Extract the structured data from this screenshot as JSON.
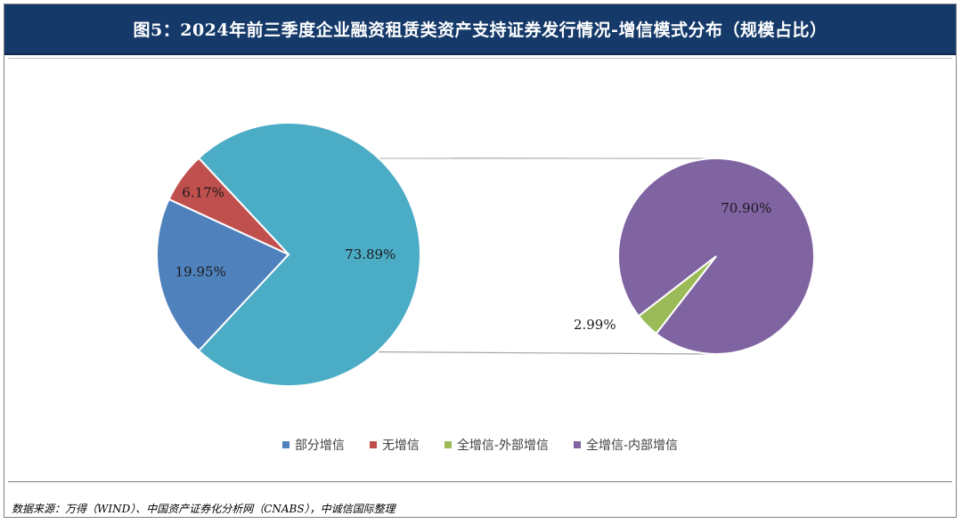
{
  "header": {
    "title": "图5：2024年前三季度企业融资租赁类资产支持证券发行情况-增信模式分布（规模占比）"
  },
  "chart_data": {
    "type": "pie",
    "subtype": "pie-of-pie",
    "main_pie": {
      "slices": [
        {
          "name": "全增信",
          "value": 73.89,
          "label": "73.89%",
          "color": "#4bacc6"
        },
        {
          "name": "部分增信",
          "value": 19.95,
          "label": "19.95%",
          "color": "#4f81bd"
        },
        {
          "name": "无增信",
          "value": 6.17,
          "label": "6.17%",
          "color": "#c0504d"
        }
      ]
    },
    "secondary_pie": {
      "slices": [
        {
          "name": "全增信-内部增信",
          "value": 70.9,
          "label": "70.90%",
          "color": "#8064a2"
        },
        {
          "name": "全增信-外部增信",
          "value": 2.99,
          "label": "2.99%",
          "color": "#9bbb59"
        }
      ]
    },
    "legend": [
      {
        "label": "部分增信",
        "color": "#4f81bd"
      },
      {
        "label": "无增信",
        "color": "#c0504d"
      },
      {
        "label": "全增信-外部增信",
        "color": "#9bbb59"
      },
      {
        "label": "全增信-内部增信",
        "color": "#8064a2"
      }
    ],
    "legend_position": "bottom"
  },
  "source": "数据来源：万得（WIND）、中国资产证券化分析网（CNABS），中诚信国际整理"
}
